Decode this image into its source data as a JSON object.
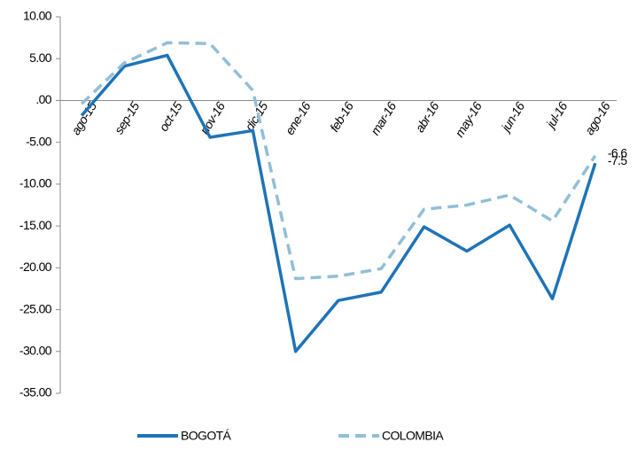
{
  "chart_data": {
    "type": "line",
    "categories": [
      "ago-15",
      "sep-15",
      "oct-15",
      "nov-16",
      "dic-15",
      "ene-16",
      "feb-16",
      "mar-16",
      "abr-16",
      "may-16",
      "jun-16",
      "jul-16",
      "ago-16"
    ],
    "series": [
      {
        "name": "BOGOTÁ",
        "color": "#1f74b8",
        "dashed": false,
        "values": [
          -1.8,
          4.1,
          5.4,
          -4.4,
          -3.6,
          -30.0,
          -23.9,
          -22.9,
          -15.1,
          -18.0,
          -14.9,
          -23.7,
          -7.5
        ]
      },
      {
        "name": "COLOMBIA",
        "color": "#91bfd5",
        "dashed": true,
        "values": [
          -0.4,
          4.5,
          6.9,
          6.8,
          1.2,
          -21.3,
          -21.0,
          -20.1,
          -13.0,
          -12.5,
          -11.3,
          -14.4,
          -6.6
        ]
      }
    ],
    "data_labels": "last",
    "ylim": [
      -35,
      10
    ],
    "yticks": [
      {
        "value": 10,
        "label": "10.00"
      },
      {
        "value": 5,
        "label": "5.00"
      },
      {
        "value": 0,
        "label": ".00"
      },
      {
        "value": -5,
        "label": "-5.00"
      },
      {
        "value": -10,
        "label": "-10.00"
      },
      {
        "value": -15,
        "label": "-15.00"
      },
      {
        "value": -20,
        "label": "-20.00"
      },
      {
        "value": -25,
        "label": "-25.00"
      },
      {
        "value": -30,
        "label": "-30.00"
      },
      {
        "value": -35,
        "label": "-35.00"
      }
    ],
    "grid": false,
    "legend": "bottom"
  }
}
